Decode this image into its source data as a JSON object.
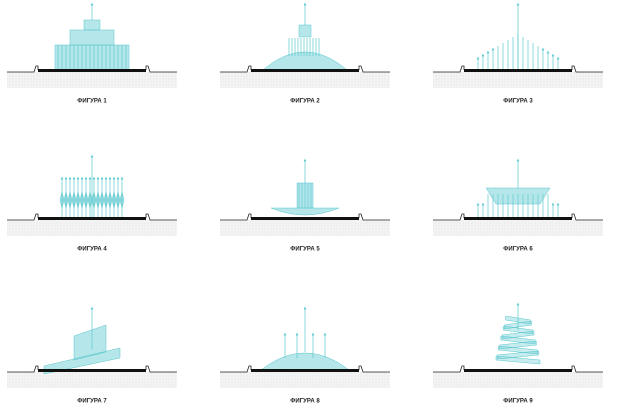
{
  "figures": [
    {
      "label": "ФИГУРА 1"
    },
    {
      "label": "ФИГУРА 2"
    },
    {
      "label": "ФИГУРА 3"
    },
    {
      "label": "ФИГУРА 4"
    },
    {
      "label": "ФИГУРА 5"
    },
    {
      "label": "ФИГУРА 6"
    },
    {
      "label": "ФИГУРА 7"
    },
    {
      "label": "ФИГУРА 8"
    },
    {
      "label": "ФИГУРА 9"
    }
  ]
}
